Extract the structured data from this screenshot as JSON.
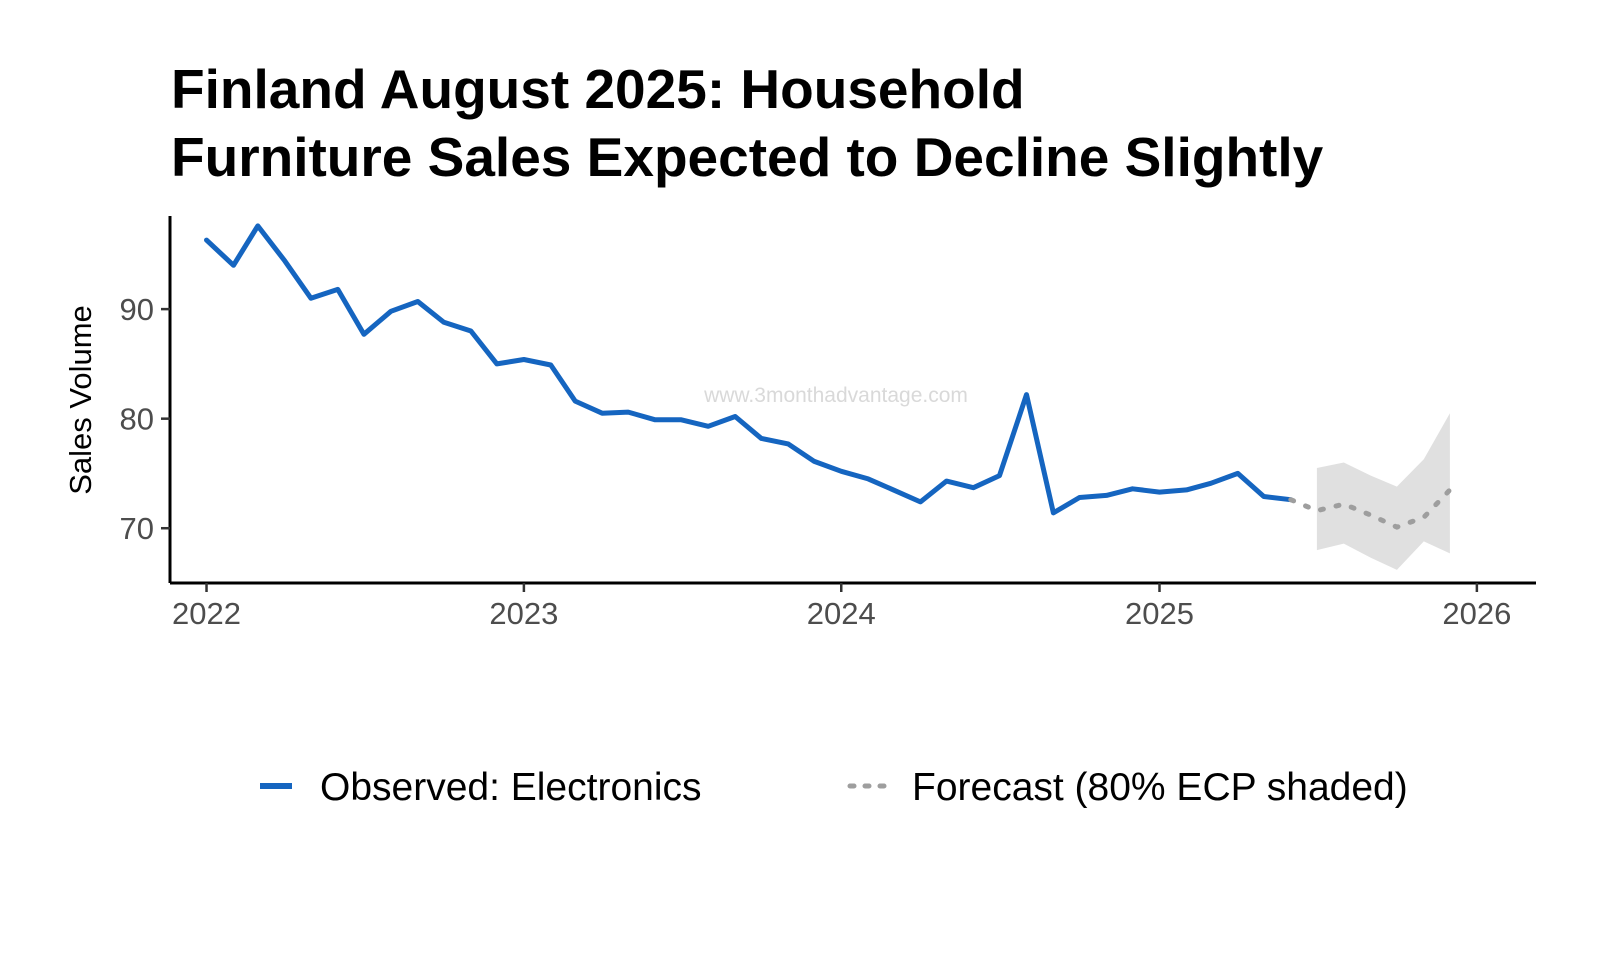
{
  "chart_data": {
    "type": "line",
    "title_lines": [
      "Finland August 2025: Household",
      "Furniture Sales Expected to Decline Slightly"
    ],
    "ylabel": "Sales Volume",
    "xlabel": "",
    "x_ticks": [
      "2022",
      "2023",
      "2024",
      "2025",
      "2026"
    ],
    "y_ticks": [
      70,
      80,
      90
    ],
    "xlim": [
      "2021-11-20",
      "2026-03-10"
    ],
    "ylim": [
      65,
      98.5
    ],
    "grid": false,
    "legend_position": "bottom",
    "watermark": "www.3monthadvantage.com",
    "colors": {
      "observed": "#1565c0",
      "forecast": "#9e9e9e",
      "band": "#e0e0e0"
    },
    "series": [
      {
        "name": "Observed: Electronics",
        "style": "solid",
        "x": [
          "2022-01",
          "2022-02",
          "2022-03",
          "2022-04",
          "2022-05",
          "2022-06",
          "2022-07",
          "2022-08",
          "2022-09",
          "2022-10",
          "2022-11",
          "2022-12",
          "2023-01",
          "2023-02",
          "2023-03",
          "2023-04",
          "2023-05",
          "2023-06",
          "2023-07",
          "2023-08",
          "2023-09",
          "2023-10",
          "2023-11",
          "2023-12",
          "2024-01",
          "2024-02",
          "2024-03",
          "2024-04",
          "2024-05",
          "2024-06",
          "2024-07",
          "2024-08",
          "2024-09",
          "2024-10",
          "2024-11",
          "2024-12",
          "2025-01",
          "2025-02",
          "2025-03",
          "2025-04",
          "2025-05",
          "2025-06"
        ],
        "values": [
          96.3,
          94.0,
          97.6,
          94.4,
          91.0,
          91.8,
          87.7,
          89.8,
          90.7,
          88.8,
          88.0,
          85.0,
          85.4,
          84.9,
          81.6,
          80.5,
          80.6,
          79.9,
          79.9,
          79.3,
          80.2,
          78.2,
          77.7,
          76.1,
          75.2,
          74.5,
          73.5,
          72.4,
          74.3,
          73.7,
          74.8,
          82.2,
          71.4,
          72.8,
          73.0,
          73.6,
          73.3,
          73.5,
          74.1,
          75.0,
          72.9,
          72.6
        ]
      },
      {
        "name": "Forecast (80% ECP shaded)",
        "style": "dotted",
        "x": [
          "2025-06",
          "2025-07",
          "2025-08",
          "2025-09",
          "2025-10",
          "2025-11",
          "2025-12"
        ],
        "values": [
          72.6,
          71.6,
          72.2,
          71.2,
          70.1,
          71.0,
          73.5
        ],
        "lower": [
          null,
          68.0,
          68.6,
          67.3,
          66.2,
          68.8,
          67.7
        ],
        "upper": [
          null,
          75.5,
          76.0,
          74.8,
          73.8,
          76.3,
          80.5
        ]
      }
    ]
  }
}
